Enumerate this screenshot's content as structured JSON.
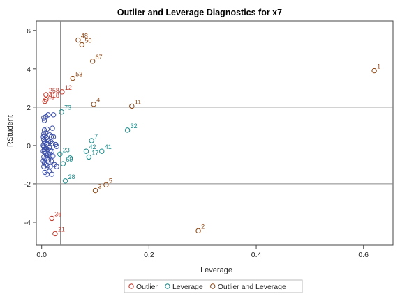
{
  "chart_data": {
    "type": "scatter",
    "title": "Outlier and Leverage Diagnostics for x7",
    "xlabel": "Leverage",
    "ylabel": "RStudent",
    "xlim": [
      -0.01,
      0.655
    ],
    "ylim": [
      -5.2,
      6.5
    ],
    "xticks": [
      0.0,
      0.2,
      0.4,
      0.6
    ],
    "xtick_labels": [
      "0.0",
      "0.2",
      "0.4",
      "0.6"
    ],
    "yticks": [
      -4,
      -2,
      0,
      2,
      4,
      6
    ],
    "ytick_labels": [
      "-4",
      "-2",
      "0",
      "2",
      "4",
      "6"
    ],
    "reference_lines": {
      "x": 0.035,
      "y": [
        2,
        -2
      ]
    },
    "grid": false,
    "legend_position": "bottom",
    "colors": {
      "Outlier": "#c0392b",
      "Leverage": "#1a8a8a",
      "Outlier and Leverage": "#8b4513",
      "Normal": "#3c4fa8",
      "refline": "#888888",
      "frame": "#444444"
    },
    "legend": [
      {
        "name": "Outlier",
        "group": "outlier"
      },
      {
        "name": "Leverage",
        "group": "leverage"
      },
      {
        "name": "Outlier and Leverage",
        "group": "both"
      }
    ],
    "labeled_points": [
      {
        "label": "48",
        "x": 0.068,
        "y": 5.5,
        "group": "both"
      },
      {
        "label": "50",
        "x": 0.075,
        "y": 5.25,
        "group": "both"
      },
      {
        "label": "67",
        "x": 0.095,
        "y": 4.4,
        "group": "both"
      },
      {
        "label": "53",
        "x": 0.058,
        "y": 3.5,
        "group": "both"
      },
      {
        "label": "1",
        "x": 0.62,
        "y": 3.9,
        "group": "both"
      },
      {
        "label": "12",
        "x": 0.038,
        "y": 2.8,
        "group": "outlier"
      },
      {
        "label": "258",
        "x": 0.008,
        "y": 2.65,
        "group": "outlier"
      },
      {
        "label": "418",
        "x": 0.008,
        "y": 2.4,
        "group": "outlier"
      },
      {
        "label": "43",
        "x": 0.006,
        "y": 2.3,
        "group": "outlier"
      },
      {
        "label": "4",
        "x": 0.097,
        "y": 2.15,
        "group": "both"
      },
      {
        "label": "11",
        "x": 0.168,
        "y": 2.05,
        "group": "both"
      },
      {
        "label": "73",
        "x": 0.037,
        "y": 1.75,
        "group": "leverage"
      },
      {
        "label": "32",
        "x": 0.16,
        "y": 0.8,
        "group": "leverage"
      },
      {
        "label": "7",
        "x": 0.093,
        "y": 0.25,
        "group": "leverage"
      },
      {
        "label": "42",
        "x": 0.083,
        "y": -0.3,
        "group": "leverage"
      },
      {
        "label": "41",
        "x": 0.112,
        "y": -0.3,
        "group": "leverage"
      },
      {
        "label": "23",
        "x": 0.034,
        "y": -0.45,
        "group": "leverage"
      },
      {
        "label": "17",
        "x": 0.088,
        "y": -0.6,
        "group": "leverage"
      },
      {
        "label": "69",
        "x": 0.04,
        "y": -0.95,
        "group": "leverage"
      },
      {
        "label": "28",
        "x": 0.044,
        "y": -1.85,
        "group": "leverage"
      },
      {
        "label": "5",
        "x": 0.12,
        "y": -2.05,
        "group": "both"
      },
      {
        "label": "3",
        "x": 0.1,
        "y": -2.35,
        "group": "both"
      },
      {
        "label": "36",
        "x": 0.019,
        "y": -3.8,
        "group": "outlier"
      },
      {
        "label": "2",
        "x": 0.292,
        "y": -4.45,
        "group": "both"
      },
      {
        "label": "21",
        "x": 0.025,
        "y": -4.6,
        "group": "outlier"
      }
    ],
    "unlabeled_points": [
      {
        "x": 0.053,
        "y": -0.65,
        "group": "leverage"
      },
      {
        "x": 0.005,
        "y": 0.8,
        "group": "normal"
      },
      {
        "x": 0.01,
        "y": 0.85,
        "group": "normal"
      },
      {
        "x": 0.02,
        "y": 0.9,
        "group": "normal"
      },
      {
        "x": 0.008,
        "y": 1.5,
        "group": "normal"
      },
      {
        "x": 0.004,
        "y": 1.45,
        "group": "normal"
      },
      {
        "x": 0.012,
        "y": 1.6,
        "group": "normal"
      },
      {
        "x": 0.022,
        "y": 1.6,
        "group": "normal"
      },
      {
        "x": 0.005,
        "y": 1.3,
        "group": "normal"
      },
      {
        "x": 0.004,
        "y": 0.6,
        "group": "normal"
      },
      {
        "x": 0.006,
        "y": 0.5,
        "group": "normal"
      },
      {
        "x": 0.009,
        "y": 0.4,
        "group": "normal"
      },
      {
        "x": 0.015,
        "y": 0.55,
        "group": "normal"
      },
      {
        "x": 0.018,
        "y": 0.45,
        "group": "normal"
      },
      {
        "x": 0.022,
        "y": 0.45,
        "group": "normal"
      },
      {
        "x": 0.004,
        "y": 0.3,
        "group": "normal"
      },
      {
        "x": 0.005,
        "y": 0.2,
        "group": "normal"
      },
      {
        "x": 0.007,
        "y": 0.15,
        "group": "normal"
      },
      {
        "x": 0.01,
        "y": 0.1,
        "group": "normal"
      },
      {
        "x": 0.013,
        "y": 0.25,
        "group": "normal"
      },
      {
        "x": 0.017,
        "y": 0.2,
        "group": "normal"
      },
      {
        "x": 0.02,
        "y": 0.1,
        "group": "normal"
      },
      {
        "x": 0.026,
        "y": 0.05,
        "group": "normal"
      },
      {
        "x": 0.028,
        "y": -0.05,
        "group": "normal"
      },
      {
        "x": 0.003,
        "y": 0.0,
        "group": "normal"
      },
      {
        "x": 0.004,
        "y": -0.05,
        "group": "normal"
      },
      {
        "x": 0.006,
        "y": -0.1,
        "group": "normal"
      },
      {
        "x": 0.008,
        "y": -0.15,
        "group": "normal"
      },
      {
        "x": 0.011,
        "y": -0.2,
        "group": "normal"
      },
      {
        "x": 0.014,
        "y": -0.1,
        "group": "normal"
      },
      {
        "x": 0.016,
        "y": -0.25,
        "group": "normal"
      },
      {
        "x": 0.019,
        "y": -0.3,
        "group": "normal"
      },
      {
        "x": 0.003,
        "y": -0.3,
        "group": "normal"
      },
      {
        "x": 0.005,
        "y": -0.35,
        "group": "normal"
      },
      {
        "x": 0.007,
        "y": -0.4,
        "group": "normal"
      },
      {
        "x": 0.009,
        "y": -0.5,
        "group": "normal"
      },
      {
        "x": 0.012,
        "y": -0.45,
        "group": "normal"
      },
      {
        "x": 0.015,
        "y": -0.55,
        "group": "normal"
      },
      {
        "x": 0.004,
        "y": -0.6,
        "group": "normal"
      },
      {
        "x": 0.006,
        "y": -0.7,
        "group": "normal"
      },
      {
        "x": 0.01,
        "y": -0.65,
        "group": "normal"
      },
      {
        "x": 0.013,
        "y": -0.75,
        "group": "normal"
      },
      {
        "x": 0.018,
        "y": -0.8,
        "group": "normal"
      },
      {
        "x": 0.005,
        "y": -0.9,
        "group": "normal"
      },
      {
        "x": 0.008,
        "y": -1.0,
        "group": "normal"
      },
      {
        "x": 0.004,
        "y": -1.1,
        "group": "normal"
      },
      {
        "x": 0.011,
        "y": -1.05,
        "group": "normal"
      },
      {
        "x": 0.016,
        "y": -1.1,
        "group": "normal"
      },
      {
        "x": 0.024,
        "y": -1.0,
        "group": "normal"
      },
      {
        "x": 0.028,
        "y": -1.1,
        "group": "normal"
      },
      {
        "x": 0.006,
        "y": -1.4,
        "group": "normal"
      },
      {
        "x": 0.01,
        "y": -1.5,
        "group": "normal"
      },
      {
        "x": 0.014,
        "y": -1.35,
        "group": "normal"
      },
      {
        "x": 0.019,
        "y": -1.5,
        "group": "normal"
      },
      {
        "x": 0.005,
        "y": -0.2,
        "group": "normal"
      },
      {
        "x": 0.003,
        "y": 0.45,
        "group": "normal"
      },
      {
        "x": 0.007,
        "y": 0.65,
        "group": "normal"
      },
      {
        "x": 0.003,
        "y": -0.8,
        "group": "normal"
      },
      {
        "x": 0.009,
        "y": 0.05,
        "group": "normal"
      },
      {
        "x": 0.021,
        "y": -0.55,
        "group": "normal"
      }
    ]
  }
}
